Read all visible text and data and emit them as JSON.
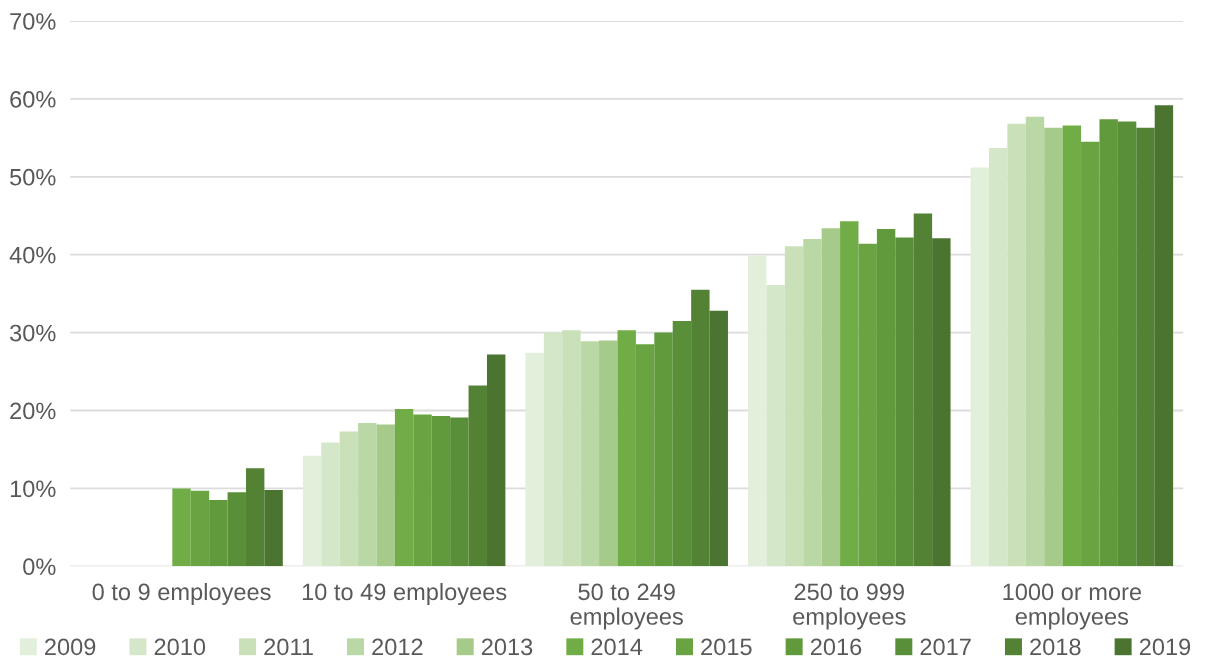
{
  "chart_data": {
    "type": "bar",
    "categories": [
      "0 to 9 employees",
      "10 to 49 employees",
      "50 to 249\nemployees",
      "250 to 999\nemployees",
      "1000 or more\nemployees"
    ],
    "series": [
      {
        "name": "2009",
        "color": "#e2efda",
        "values": [
          null,
          14.2,
          27.4,
          39.9,
          51.2
        ]
      },
      {
        "name": "2010",
        "color": "#d5e7c9",
        "values": [
          null,
          15.9,
          30.0,
          36.1,
          53.7
        ]
      },
      {
        "name": "2011",
        "color": "#c9e0b8",
        "values": [
          null,
          17.3,
          30.3,
          41.1,
          56.8
        ]
      },
      {
        "name": "2012",
        "color": "#bad8a5",
        "values": [
          null,
          18.4,
          28.9,
          42.0,
          57.7
        ]
      },
      {
        "name": "2013",
        "color": "#a6ca89",
        "values": [
          null,
          18.2,
          29.0,
          43.4,
          56.3
        ]
      },
      {
        "name": "2014",
        "color": "#70ad47",
        "values": [
          10.0,
          20.2,
          30.3,
          44.3,
          56.6
        ]
      },
      {
        "name": "2015",
        "color": "#6aa442",
        "values": [
          9.7,
          19.5,
          28.5,
          41.4,
          54.5
        ]
      },
      {
        "name": "2016",
        "color": "#61993d",
        "values": [
          8.5,
          19.3,
          30.0,
          43.3,
          57.4
        ]
      },
      {
        "name": "2017",
        "color": "#5a8f39",
        "values": [
          9.5,
          19.1,
          31.5,
          42.2,
          57.1
        ]
      },
      {
        "name": "2018",
        "color": "#538235",
        "values": [
          12.6,
          23.2,
          35.5,
          45.3,
          56.3
        ]
      },
      {
        "name": "2019",
        "color": "#4a7430",
        "values": [
          9.8,
          27.2,
          32.8,
          42.1,
          59.2
        ]
      }
    ],
    "ylim": [
      0,
      70
    ],
    "yticks": [
      {
        "value": 0,
        "label": "0%"
      },
      {
        "value": 10,
        "label": "10%"
      },
      {
        "value": 20,
        "label": "20%"
      },
      {
        "value": 30,
        "label": "30%"
      },
      {
        "value": 40,
        "label": "40%"
      },
      {
        "value": 50,
        "label": "50%"
      },
      {
        "value": 60,
        "label": "60%"
      },
      {
        "value": 70,
        "label": "70%"
      }
    ],
    "grid": "y",
    "legend": "bottom"
  }
}
